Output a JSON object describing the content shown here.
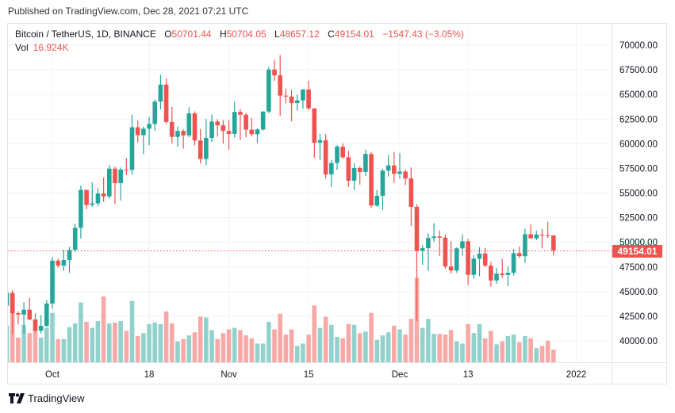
{
  "header": {
    "published": "Published on TradingView.com, Dec 28, 2021 07:21 UTC"
  },
  "legend": {
    "symbol": "Bitcoin / TetherUS, 1D, BINANCE",
    "o_label": "O",
    "o_value": "50701.44",
    "h_label": "H",
    "h_value": "50704.05",
    "l_label": "L",
    "l_value": "48657.12",
    "c_label": "C",
    "c_value": "49154.01",
    "change": "−1547.43 (−3.05%)",
    "vol_label": "Vol",
    "vol_value": "16.924K"
  },
  "last_price_label": "49154.01",
  "footer": {
    "brand": "TradingView"
  },
  "colors": {
    "up": "#26a69a",
    "down": "#ef5350",
    "up_vol": "#92d2cc",
    "down_vol": "#f7a9a7",
    "grid": "#f0f3fa"
  },
  "chart_data": {
    "type": "candlestick",
    "title": "Bitcoin / TetherUS, 1D, BINANCE",
    "ylim": [
      38000,
      71500
    ],
    "y_ticks": [
      "70000.00",
      "67500.00",
      "65000.00",
      "62500.00",
      "60000.00",
      "57500.00",
      "55000.00",
      "52500.00",
      "50000.00",
      "47500.00",
      "45000.00",
      "42500.00",
      "40000.00"
    ],
    "x_ticks": [
      {
        "label": "Oct",
        "date": "2021-10-01"
      },
      {
        "label": "18",
        "date": "2021-10-18"
      },
      {
        "label": "Nov",
        "date": "2021-11-01"
      },
      {
        "label": "15",
        "date": "2021-11-15"
      },
      {
        "label": "Dec",
        "date": "2021-12-01"
      },
      {
        "label": "13",
        "date": "2021-12-13"
      },
      {
        "label": "2022",
        "date": "2022-01-01"
      }
    ],
    "last_close": 49154.01,
    "volume_unit": "K",
    "columns": [
      "date",
      "open",
      "high",
      "low",
      "close",
      "volume"
    ],
    "candles": [
      [
        "2021-09-23",
        43560,
        44980,
        43070,
        44890,
        49
      ],
      [
        "2021-09-24",
        44870,
        45160,
        40680,
        42810,
        83
      ],
      [
        "2021-09-25",
        42810,
        42980,
        41670,
        42670,
        33
      ],
      [
        "2021-09-26",
        42670,
        43920,
        40750,
        43160,
        50
      ],
      [
        "2021-09-27",
        43160,
        44350,
        42100,
        42170,
        39
      ],
      [
        "2021-09-28",
        42170,
        42780,
        40920,
        41030,
        43
      ],
      [
        "2021-09-29",
        41030,
        42590,
        40750,
        41520,
        33
      ],
      [
        "2021-09-30",
        41520,
        44130,
        41410,
        43790,
        46
      ],
      [
        "2021-10-01",
        43790,
        48490,
        43280,
        48140,
        66
      ],
      [
        "2021-10-02",
        48140,
        48350,
        47430,
        47630,
        31
      ],
      [
        "2021-10-03",
        47630,
        49230,
        47100,
        48200,
        31
      ],
      [
        "2021-10-04",
        48200,
        49530,
        46890,
        49220,
        47
      ],
      [
        "2021-10-05",
        49220,
        51890,
        49000,
        51470,
        52
      ],
      [
        "2021-10-06",
        51470,
        55750,
        50380,
        55320,
        80
      ],
      [
        "2021-10-07",
        55320,
        55340,
        53360,
        53790,
        54
      ],
      [
        "2021-10-08",
        53790,
        56100,
        53620,
        53950,
        46
      ],
      [
        "2021-10-09",
        53950,
        55490,
        53660,
        54950,
        55
      ],
      [
        "2021-10-10",
        54950,
        56560,
        54110,
        54660,
        88
      ],
      [
        "2021-10-11",
        54660,
        57840,
        54430,
        57470,
        52
      ],
      [
        "2021-10-12",
        57470,
        57680,
        53880,
        56000,
        53
      ],
      [
        "2021-10-13",
        56000,
        57590,
        54250,
        57370,
        55
      ],
      [
        "2021-10-14",
        57370,
        58550,
        56820,
        57350,
        42
      ],
      [
        "2021-10-15",
        57350,
        62940,
        56850,
        61670,
        82
      ],
      [
        "2021-10-16",
        61670,
        62340,
        60150,
        60870,
        35
      ],
      [
        "2021-10-17",
        60870,
        61720,
        58960,
        61530,
        39
      ],
      [
        "2021-10-18",
        61530,
        62700,
        59840,
        62010,
        51
      ],
      [
        "2021-10-19",
        62010,
        64490,
        61320,
        64280,
        53
      ],
      [
        "2021-10-20",
        64280,
        66999,
        63480,
        66000,
        51
      ],
      [
        "2021-10-21",
        66000,
        66640,
        62000,
        62210,
        68
      ],
      [
        "2021-10-22",
        62210,
        63730,
        60000,
        60690,
        52
      ],
      [
        "2021-10-23",
        60690,
        61750,
        59700,
        61290,
        28
      ],
      [
        "2021-10-24",
        61290,
        61500,
        59510,
        60850,
        31
      ],
      [
        "2021-10-25",
        60850,
        63710,
        60650,
        63080,
        36
      ],
      [
        "2021-10-26",
        63080,
        63290,
        59820,
        60330,
        40
      ],
      [
        "2021-10-27",
        60330,
        61500,
        58000,
        58450,
        61
      ],
      [
        "2021-10-28",
        58450,
        62500,
        57820,
        60590,
        60
      ],
      [
        "2021-10-29",
        60590,
        62960,
        60170,
        62250,
        43
      ],
      [
        "2021-10-30",
        62250,
        62490,
        60720,
        61870,
        31
      ],
      [
        "2021-10-31",
        61870,
        62400,
        60000,
        61300,
        39
      ],
      [
        "2021-11-01",
        61300,
        62420,
        59400,
        61000,
        44
      ],
      [
        "2021-11-02",
        61000,
        64270,
        60620,
        63230,
        46
      ],
      [
        "2021-11-03",
        63230,
        63520,
        60380,
        62940,
        43
      ],
      [
        "2021-11-04",
        62940,
        63120,
        60680,
        61430,
        36
      ],
      [
        "2021-11-05",
        61430,
        62600,
        60720,
        60970,
        32
      ],
      [
        "2021-11-06",
        60970,
        61560,
        60080,
        61450,
        25
      ],
      [
        "2021-11-07",
        61450,
        63290,
        61330,
        63270,
        25
      ],
      [
        "2021-11-08",
        63270,
        67790,
        63100,
        67530,
        54
      ],
      [
        "2021-11-09",
        67530,
        68530,
        66380,
        66940,
        44
      ],
      [
        "2021-11-10",
        66940,
        69000,
        62820,
        64880,
        65
      ],
      [
        "2021-11-11",
        64880,
        65600,
        64100,
        64790,
        37
      ],
      [
        "2021-11-12",
        64790,
        65460,
        62280,
        64130,
        44
      ],
      [
        "2021-11-13",
        64130,
        65000,
        63360,
        64400,
        22
      ],
      [
        "2021-11-14",
        64400,
        65550,
        63560,
        65500,
        25
      ],
      [
        "2021-11-15",
        65500,
        66400,
        63400,
        63590,
        37
      ],
      [
        "2021-11-16",
        63590,
        63590,
        58580,
        60100,
        76
      ],
      [
        "2021-11-17",
        60100,
        61000,
        58370,
        60360,
        46
      ],
      [
        "2021-11-18",
        60360,
        60980,
        56470,
        56890,
        61
      ],
      [
        "2021-11-19",
        56890,
        58370,
        55600,
        58050,
        50
      ],
      [
        "2021-11-20",
        58050,
        59850,
        57350,
        59700,
        34
      ],
      [
        "2021-11-21",
        59700,
        60050,
        58470,
        58620,
        32
      ],
      [
        "2021-11-22",
        58620,
        59270,
        55610,
        56250,
        51
      ],
      [
        "2021-11-23",
        56250,
        58000,
        55320,
        57540,
        50
      ],
      [
        "2021-11-24",
        57540,
        57700,
        55840,
        57140,
        39
      ],
      [
        "2021-11-25",
        57140,
        59400,
        56700,
        58960,
        41
      ],
      [
        "2021-11-26",
        58960,
        59170,
        53500,
        53720,
        66
      ],
      [
        "2021-11-27",
        53720,
        55300,
        53610,
        54720,
        30
      ],
      [
        "2021-11-28",
        54720,
        57440,
        53250,
        57270,
        36
      ],
      [
        "2021-11-29",
        57270,
        58870,
        56680,
        57800,
        40
      ],
      [
        "2021-11-30",
        57800,
        59180,
        56000,
        56950,
        49
      ],
      [
        "2021-12-01",
        56950,
        59050,
        56450,
        57180,
        44
      ],
      [
        "2021-12-02",
        57180,
        57370,
        55800,
        56480,
        37
      ],
      [
        "2021-12-03",
        56480,
        57600,
        51680,
        53600,
        58
      ],
      [
        "2021-12-04",
        53600,
        53850,
        42000,
        49150,
        113
      ],
      [
        "2021-12-05",
        49150,
        49700,
        47710,
        49400,
        46
      ],
      [
        "2021-12-06",
        49400,
        50900,
        47100,
        50440,
        58
      ],
      [
        "2021-12-07",
        50440,
        51940,
        50040,
        50590,
        38
      ],
      [
        "2021-12-08",
        50590,
        51200,
        48600,
        50470,
        38
      ],
      [
        "2021-12-09",
        50470,
        50800,
        47330,
        47550,
        37
      ],
      [
        "2021-12-10",
        47550,
        50100,
        46850,
        47140,
        43
      ],
      [
        "2021-12-11",
        47140,
        49480,
        46900,
        49390,
        28
      ],
      [
        "2021-12-12",
        49390,
        50800,
        48640,
        50100,
        25
      ],
      [
        "2021-12-13",
        50100,
        50350,
        45670,
        46700,
        51
      ],
      [
        "2021-12-14",
        46700,
        48700,
        46300,
        48340,
        39
      ],
      [
        "2021-12-15",
        48340,
        49500,
        46550,
        48860,
        51
      ],
      [
        "2021-12-16",
        48860,
        49450,
        47510,
        47630,
        32
      ],
      [
        "2021-12-17",
        47630,
        48000,
        45500,
        46130,
        42
      ],
      [
        "2021-12-18",
        46130,
        47400,
        45800,
        46830,
        24
      ],
      [
        "2021-12-19",
        46830,
        48300,
        46400,
        46680,
        28
      ],
      [
        "2021-12-20",
        46680,
        47540,
        45560,
        46910,
        35
      ],
      [
        "2021-12-21",
        46910,
        49330,
        46630,
        48900,
        37
      ],
      [
        "2021-12-22",
        48900,
        49580,
        48420,
        48590,
        27
      ],
      [
        "2021-12-23",
        48590,
        51380,
        47900,
        50820,
        35
      ],
      [
        "2021-12-24",
        50820,
        51800,
        50400,
        50400,
        32
      ],
      [
        "2021-12-25",
        50400,
        51170,
        50220,
        50780,
        19
      ],
      [
        "2021-12-26",
        50780,
        51350,
        49400,
        50710,
        22
      ],
      [
        "2021-12-27",
        50710,
        52090,
        50440,
        50700,
        29
      ],
      [
        "2021-12-28",
        50701.44,
        50704.05,
        48657.12,
        49154.01,
        16.924
      ]
    ]
  }
}
